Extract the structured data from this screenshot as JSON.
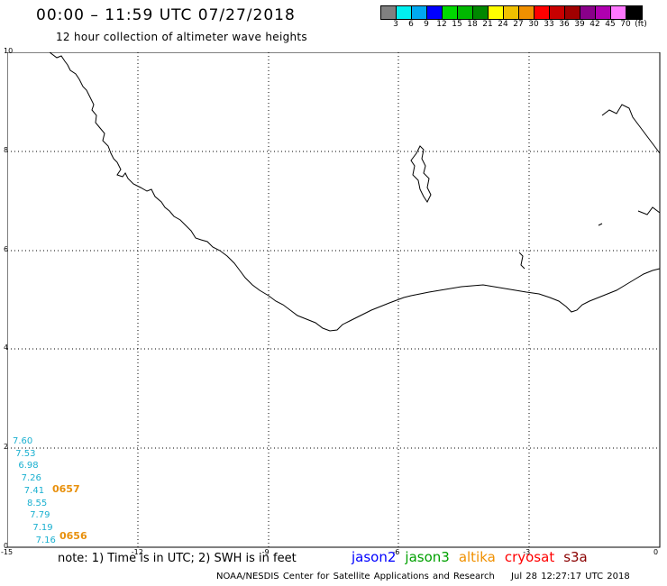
{
  "header": {
    "title": "00:00 – 11:59 UTC 07/27/2018",
    "subtitle": "12 hour collection of altimeter wave heights"
  },
  "color_scale": {
    "colors": [
      "#808080",
      "#00f0f0",
      "#00a8f0",
      "#0000ff",
      "#00d800",
      "#00b800",
      "#008800",
      "#ffff00",
      "#f0c000",
      "#f09000",
      "#ff0000",
      "#c80000",
      "#a00000",
      "#8a008a",
      "#b000b0",
      "#ff78ff",
      "#000000"
    ],
    "labels": [
      "3",
      "6",
      "9",
      "12",
      "15",
      "18",
      "21",
      "24",
      "27",
      "30",
      "33",
      "36",
      "39",
      "42",
      "45",
      "70",
      "(ft)"
    ]
  },
  "map": {
    "y_ticks": [
      "10",
      "8",
      "6",
      "4",
      "2",
      "0"
    ],
    "x_ticks": [
      "-15",
      "-12",
      "-9",
      "-6",
      "-3",
      "0"
    ],
    "wave_values": [
      "7.60",
      "7.53",
      "6.98",
      "7.26",
      "7.41",
      "8.55",
      "7.79",
      "7.19",
      "7.16"
    ],
    "pass_labels": [
      "0657",
      "0656"
    ]
  },
  "note": "note:  1) Time is in UTC;  2) SWH is in feet",
  "satellites": [
    {
      "name": "jason2",
      "color": "#0000ff"
    },
    {
      "name": "jason3",
      "color": "#00a000"
    },
    {
      "name": "altika",
      "color": "#f09000"
    },
    {
      "name": "cryosat",
      "color": "#ff0000"
    },
    {
      "name": "s3a",
      "color": "#8a0000"
    }
  ],
  "footer": {
    "credit": "NOAA/NESDIS Center for Satellite Applications and Research",
    "timestamp": "Jul 28 12:27:17 UTC 2018"
  }
}
